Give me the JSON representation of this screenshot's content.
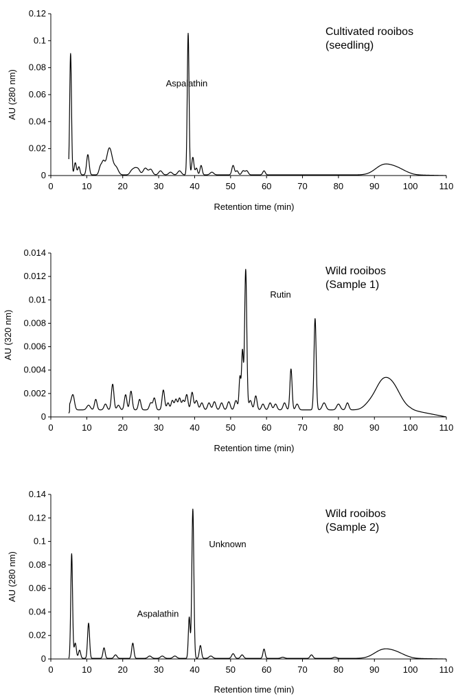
{
  "chart_data": [
    {
      "type": "line",
      "title": "",
      "xlabel": "Retention time (min)",
      "ylabel": "AU (280 nm)",
      "xlim": [
        0,
        110
      ],
      "ylim": [
        0,
        0.12
      ],
      "xticks": [
        0,
        10,
        20,
        30,
        40,
        50,
        60,
        70,
        80,
        90,
        100,
        110
      ],
      "yticks": [
        0,
        0.02,
        0.04,
        0.06,
        0.08,
        0.1,
        0.12
      ],
      "ytick_labels": [
        "0",
        "0.02",
        "0.04",
        "0.06",
        "0.08",
        "0.1",
        "0.12"
      ],
      "grid": false,
      "legend_text": [
        "Cultivated rooibos",
        "(seedling)"
      ],
      "annotations": [
        {
          "text": "Aspalathin",
          "x": 32,
          "y": 0.066
        }
      ],
      "baseline": 0.0005,
      "peaks": [
        [
          5.5,
          0.09,
          0.25
        ],
        [
          6.8,
          0.009,
          0.3
        ],
        [
          7.8,
          0.006,
          0.3
        ],
        [
          10.3,
          0.015,
          0.35
        ],
        [
          13.8,
          0.006,
          0.4
        ],
        [
          14.6,
          0.008,
          0.4
        ],
        [
          16.3,
          0.02,
          0.8
        ],
        [
          18.2,
          0.005,
          0.6
        ],
        [
          22.5,
          0.003,
          0.5
        ],
        [
          23.4,
          0.004,
          0.5
        ],
        [
          24.3,
          0.004,
          0.5
        ],
        [
          26.3,
          0.005,
          0.6
        ],
        [
          27.8,
          0.004,
          0.5
        ],
        [
          30.5,
          0.003,
          0.5
        ],
        [
          33.3,
          0.002,
          0.5
        ],
        [
          35.8,
          0.003,
          0.5
        ],
        [
          38.2,
          0.105,
          0.25
        ],
        [
          39.5,
          0.013,
          0.3
        ],
        [
          40.5,
          0.005,
          0.3
        ],
        [
          41.8,
          0.007,
          0.3
        ],
        [
          44.8,
          0.002,
          0.5
        ],
        [
          50.7,
          0.007,
          0.35
        ],
        [
          51.8,
          0.003,
          0.35
        ],
        [
          53.5,
          0.003,
          0.4
        ],
        [
          54.5,
          0.003,
          0.4
        ],
        [
          59.3,
          0.003,
          0.35
        ],
        [
          92.2,
          0.006,
          2.2
        ],
        [
          96.0,
          0.005,
          2.5
        ]
      ]
    },
    {
      "type": "line",
      "title": "",
      "xlabel": "Retention time (min)",
      "ylabel": "AU (320 nm)",
      "xlim": [
        0,
        110
      ],
      "ylim": [
        0,
        0.014
      ],
      "xticks": [
        0,
        10,
        20,
        30,
        40,
        50,
        60,
        70,
        80,
        90,
        100,
        110
      ],
      "yticks": [
        0,
        0.002,
        0.004,
        0.006,
        0.008,
        0.01,
        0.012,
        0.014
      ],
      "ytick_labels": [
        "0",
        "0.002",
        "0.004",
        "0.006",
        "0.008",
        "0.01",
        "0.012",
        "0.014"
      ],
      "grid": false,
      "legend_text": [
        "Wild rooibos",
        "(Sample 1)"
      ],
      "annotations": [
        {
          "text": "Rutin",
          "x": 61,
          "y": 0.0102
        }
      ],
      "baseline": 0.0006,
      "peaks": [
        [
          5.5,
          0.0005,
          0.5
        ],
        [
          6.2,
          0.0011,
          0.4
        ],
        [
          10.5,
          0.0004,
          0.5
        ],
        [
          12.5,
          0.0009,
          0.35
        ],
        [
          15.2,
          0.0005,
          0.4
        ],
        [
          17.2,
          0.0022,
          0.35
        ],
        [
          18.8,
          0.0004,
          0.4
        ],
        [
          20.8,
          0.0013,
          0.35
        ],
        [
          22.3,
          0.0016,
          0.35
        ],
        [
          24.7,
          0.0009,
          0.35
        ],
        [
          27.8,
          0.0006,
          0.4
        ],
        [
          28.8,
          0.001,
          0.35
        ],
        [
          31.3,
          0.0017,
          0.35
        ],
        [
          32.6,
          0.0006,
          0.35
        ],
        [
          33.8,
          0.0008,
          0.35
        ],
        [
          34.8,
          0.0009,
          0.35
        ],
        [
          35.8,
          0.001,
          0.35
        ],
        [
          36.8,
          0.0008,
          0.35
        ],
        [
          37.8,
          0.0013,
          0.35
        ],
        [
          39.3,
          0.0015,
          0.35
        ],
        [
          40.5,
          0.0008,
          0.4
        ],
        [
          42.0,
          0.0006,
          0.4
        ],
        [
          44.0,
          0.0006,
          0.4
        ],
        [
          45.5,
          0.0007,
          0.4
        ],
        [
          47.5,
          0.0006,
          0.4
        ],
        [
          49.5,
          0.0007,
          0.4
        ],
        [
          51.5,
          0.0008,
          0.4
        ],
        [
          52.6,
          0.0028,
          0.25
        ],
        [
          53.3,
          0.005,
          0.25
        ],
        [
          54.2,
          0.012,
          0.3
        ],
        [
          55.5,
          0.0008,
          0.4
        ],
        [
          57.0,
          0.0012,
          0.35
        ],
        [
          59.0,
          0.0005,
          0.4
        ],
        [
          61.0,
          0.0006,
          0.4
        ],
        [
          62.5,
          0.0005,
          0.4
        ],
        [
          65.0,
          0.0006,
          0.4
        ],
        [
          66.8,
          0.0035,
          0.3
        ],
        [
          68.5,
          0.0005,
          0.4
        ],
        [
          73.5,
          0.0078,
          0.3
        ],
        [
          76.0,
          0.0006,
          0.5
        ],
        [
          80.0,
          0.0005,
          0.5
        ],
        [
          82.5,
          0.0006,
          0.4
        ],
        [
          88.5,
          0.0004,
          1.5
        ],
        [
          91.5,
          0.0012,
          1.8
        ],
        [
          94.5,
          0.0023,
          2.5
        ]
      ]
    },
    {
      "type": "line",
      "title": "",
      "xlabel": "Retention time (min)",
      "ylabel": "AU (280 nm)",
      "xlim": [
        0,
        110
      ],
      "ylim": [
        0,
        0.14
      ],
      "xticks": [
        0,
        10,
        20,
        30,
        40,
        50,
        60,
        70,
        80,
        90,
        100,
        110
      ],
      "yticks": [
        0,
        0.02,
        0.04,
        0.06,
        0.08,
        0.1,
        0.12,
        0.14
      ],
      "ytick_labels": [
        "0",
        "0.02",
        "0.04",
        "0.06",
        "0.08",
        "0.1",
        "0.12",
        "0.14"
      ],
      "grid": false,
      "legend_text": [
        "Wild rooibos",
        "(Sample 2)"
      ],
      "annotations": [
        {
          "text": "Unknown",
          "x": 44,
          "y": 0.095
        },
        {
          "text": "Aspalathin",
          "x": 24,
          "y": 0.036
        }
      ],
      "baseline": 0.0005,
      "peaks": [
        [
          5.8,
          0.089,
          0.25
        ],
        [
          6.8,
          0.013,
          0.3
        ],
        [
          8.0,
          0.007,
          0.3
        ],
        [
          10.5,
          0.03,
          0.28
        ],
        [
          14.8,
          0.009,
          0.3
        ],
        [
          18.0,
          0.003,
          0.4
        ],
        [
          22.8,
          0.013,
          0.3
        ],
        [
          27.5,
          0.002,
          0.5
        ],
        [
          31.0,
          0.002,
          0.5
        ],
        [
          34.5,
          0.002,
          0.5
        ],
        [
          38.5,
          0.035,
          0.25
        ],
        [
          39.5,
          0.127,
          0.28
        ],
        [
          41.6,
          0.011,
          0.3
        ],
        [
          44.5,
          0.002,
          0.5
        ],
        [
          50.7,
          0.004,
          0.4
        ],
        [
          53.2,
          0.003,
          0.4
        ],
        [
          59.3,
          0.008,
          0.3
        ],
        [
          64.5,
          0.001,
          0.5
        ],
        [
          72.5,
          0.003,
          0.4
        ],
        [
          79.0,
          0.001,
          0.5
        ],
        [
          92.0,
          0.006,
          2.3
        ],
        [
          95.8,
          0.005,
          2.5
        ]
      ]
    }
  ]
}
